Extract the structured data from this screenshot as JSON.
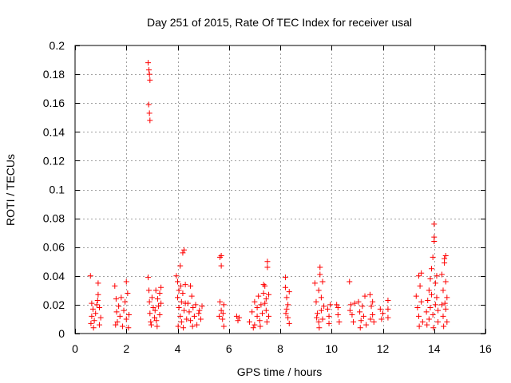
{
  "chart_data": {
    "type": "scatter",
    "title": "Day 251 of 2015, Rate Of TEC Index for receiver usal",
    "xlabel": "GPS time / hours",
    "ylabel": "ROTI / TECUs",
    "xlim": [
      0,
      16
    ],
    "ylim": [
      0,
      0.2
    ],
    "xticks": [
      0,
      2,
      4,
      6,
      8,
      10,
      12,
      14,
      16
    ],
    "xtick_labels": [
      "0",
      "2",
      "4",
      "6",
      "8",
      "10",
      "12",
      "14",
      "16"
    ],
    "yticks": [
      0,
      0.02,
      0.04,
      0.06,
      0.08,
      0.1,
      0.12,
      0.14,
      0.16,
      0.18,
      0.2
    ],
    "ytick_labels": [
      "0",
      "0.02",
      "0.04",
      "0.06",
      "0.08",
      "0.1",
      "0.12",
      "0.14",
      "0.16",
      "0.18",
      "0.2"
    ],
    "grid": true,
    "marker": "+",
    "series": [
      {
        "name": "ROTI",
        "color": "#ff0000",
        "points": [
          [
            0.6,
            0.04
          ],
          [
            0.65,
            0.021
          ],
          [
            0.65,
            0.012
          ],
          [
            0.62,
            0.007
          ],
          [
            0.7,
            0.017
          ],
          [
            0.75,
            0.009
          ],
          [
            0.8,
            0.014
          ],
          [
            0.85,
            0.02
          ],
          [
            0.9,
            0.035
          ],
          [
            0.9,
            0.027
          ],
          [
            0.95,
            0.018
          ],
          [
            0.95,
            0.006
          ],
          [
            1.0,
            0.011
          ],
          [
            0.72,
            0.004
          ],
          [
            0.88,
            0.023
          ],
          [
            1.55,
            0.033
          ],
          [
            1.6,
            0.024
          ],
          [
            1.62,
            0.015
          ],
          [
            1.65,
            0.008
          ],
          [
            1.7,
            0.019
          ],
          [
            1.75,
            0.012
          ],
          [
            1.8,
            0.025
          ],
          [
            1.85,
            0.005
          ],
          [
            1.9,
            0.016
          ],
          [
            1.95,
            0.022
          ],
          [
            2.0,
            0.036
          ],
          [
            2.0,
            0.01
          ],
          [
            2.05,
            0.028
          ],
          [
            2.1,
            0.013
          ],
          [
            1.58,
            0.006
          ],
          [
            2.08,
            0.004
          ],
          [
            2.85,
            0.188
          ],
          [
            2.88,
            0.183
          ],
          [
            2.9,
            0.18
          ],
          [
            2.92,
            0.176
          ],
          [
            2.87,
            0.159
          ],
          [
            2.9,
            0.153
          ],
          [
            2.92,
            0.148
          ],
          [
            2.85,
            0.039
          ],
          [
            2.88,
            0.03
          ],
          [
            2.9,
            0.022
          ],
          [
            2.92,
            0.014
          ],
          [
            2.95,
            0.008
          ],
          [
            3.0,
            0.025
          ],
          [
            3.05,
            0.018
          ],
          [
            3.1,
            0.011
          ],
          [
            3.15,
            0.03
          ],
          [
            3.2,
            0.005
          ],
          [
            3.25,
            0.019
          ],
          [
            3.3,
            0.028
          ],
          [
            3.3,
            0.013
          ],
          [
            3.35,
            0.032
          ],
          [
            3.35,
            0.021
          ],
          [
            3.12,
            0.016
          ],
          [
            3.22,
            0.024
          ],
          [
            2.97,
            0.006
          ],
          [
            3.17,
            0.009
          ],
          [
            3.95,
            0.04
          ],
          [
            4.0,
            0.036
          ],
          [
            4.0,
            0.025
          ],
          [
            4.05,
            0.03
          ],
          [
            4.05,
            0.018
          ],
          [
            4.1,
            0.012
          ],
          [
            4.1,
            0.047
          ],
          [
            4.15,
            0.022
          ],
          [
            4.15,
            0.008
          ],
          [
            4.2,
            0.028
          ],
          [
            4.2,
            0.056
          ],
          [
            4.25,
            0.058
          ],
          [
            4.25,
            0.016
          ],
          [
            4.3,
            0.034
          ],
          [
            4.3,
            0.021
          ],
          [
            4.35,
            0.01
          ],
          [
            4.02,
            0.005
          ],
          [
            4.12,
            0.033
          ],
          [
            4.22,
            0.004
          ],
          [
            4.4,
            0.021
          ],
          [
            4.45,
            0.015
          ],
          [
            4.5,
            0.009
          ],
          [
            4.5,
            0.033
          ],
          [
            4.55,
            0.026
          ],
          [
            4.6,
            0.018
          ],
          [
            4.65,
            0.012
          ],
          [
            4.7,
            0.02
          ],
          [
            4.75,
            0.006
          ],
          [
            4.85,
            0.016
          ],
          [
            4.9,
            0.01
          ],
          [
            4.95,
            0.019
          ],
          [
            4.58,
            0.005
          ],
          [
            4.82,
            0.014
          ],
          [
            5.65,
            0.053
          ],
          [
            5.7,
            0.054
          ],
          [
            5.7,
            0.047
          ],
          [
            5.65,
            0.022
          ],
          [
            5.7,
            0.016
          ],
          [
            5.75,
            0.01
          ],
          [
            5.8,
            0.02
          ],
          [
            5.8,
            0.005
          ],
          [
            5.62,
            0.012
          ],
          [
            5.77,
            0.014
          ],
          [
            6.3,
            0.012
          ],
          [
            6.35,
            0.009
          ],
          [
            6.4,
            0.011
          ],
          [
            6.8,
            0.008
          ],
          [
            6.9,
            0.015
          ],
          [
            7.0,
            0.022
          ],
          [
            7.0,
            0.006
          ],
          [
            7.1,
            0.018
          ],
          [
            7.1,
            0.012
          ],
          [
            7.15,
            0.026
          ],
          [
            7.2,
            0.009
          ],
          [
            7.25,
            0.02
          ],
          [
            7.3,
            0.014
          ],
          [
            7.35,
            0.028
          ],
          [
            7.35,
            0.034
          ],
          [
            7.4,
            0.033
          ],
          [
            7.4,
            0.021
          ],
          [
            7.45,
            0.024
          ],
          [
            7.45,
            0.016
          ],
          [
            7.5,
            0.046
          ],
          [
            7.5,
            0.05
          ],
          [
            7.55,
            0.027
          ],
          [
            7.55,
            0.012
          ],
          [
            6.95,
            0.004
          ],
          [
            7.22,
            0.005
          ],
          [
            7.48,
            0.008
          ],
          [
            8.2,
            0.039
          ],
          [
            8.2,
            0.032
          ],
          [
            8.25,
            0.025
          ],
          [
            8.25,
            0.017
          ],
          [
            8.3,
            0.011
          ],
          [
            8.3,
            0.02
          ],
          [
            8.35,
            0.029
          ],
          [
            8.35,
            0.007
          ],
          [
            8.22,
            0.014
          ],
          [
            9.35,
            0.035
          ],
          [
            9.4,
            0.022
          ],
          [
            9.45,
            0.014
          ],
          [
            9.5,
            0.008
          ],
          [
            9.5,
            0.03
          ],
          [
            9.55,
            0.041
          ],
          [
            9.55,
            0.046
          ],
          [
            9.6,
            0.025
          ],
          [
            9.6,
            0.016
          ],
          [
            9.65,
            0.036
          ],
          [
            9.65,
            0.01
          ],
          [
            9.7,
            0.019
          ],
          [
            9.52,
            0.004
          ],
          [
            9.42,
            0.011
          ],
          [
            9.85,
            0.017
          ],
          [
            9.9,
            0.012
          ],
          [
            9.95,
            0.02
          ],
          [
            9.9,
            0.007
          ],
          [
            10.2,
            0.02
          ],
          [
            10.25,
            0.013
          ],
          [
            10.3,
            0.008
          ],
          [
            10.25,
            0.018
          ],
          [
            10.7,
            0.036
          ],
          [
            10.75,
            0.02
          ],
          [
            10.8,
            0.013
          ],
          [
            10.85,
            0.008
          ],
          [
            10.9,
            0.021
          ],
          [
            10.72,
            0.016
          ],
          [
            11.05,
            0.022
          ],
          [
            11.1,
            0.015
          ],
          [
            11.15,
            0.009
          ],
          [
            11.2,
            0.019
          ],
          [
            11.25,
            0.012
          ],
          [
            11.3,
            0.026
          ],
          [
            11.35,
            0.006
          ],
          [
            11.12,
            0.004
          ],
          [
            11.5,
            0.027
          ],
          [
            11.55,
            0.019
          ],
          [
            11.6,
            0.013
          ],
          [
            11.65,
            0.008
          ],
          [
            11.6,
            0.022
          ],
          [
            11.52,
            0.01
          ],
          [
            11.9,
            0.017
          ],
          [
            11.95,
            0.01
          ],
          [
            12.0,
            0.014
          ],
          [
            12.2,
            0.023
          ],
          [
            12.2,
            0.017
          ],
          [
            12.2,
            0.011
          ],
          [
            13.3,
            0.026
          ],
          [
            13.35,
            0.018
          ],
          [
            13.4,
            0.012
          ],
          [
            13.4,
            0.04
          ],
          [
            13.45,
            0.033
          ],
          [
            13.5,
            0.042
          ],
          [
            13.5,
            0.022
          ],
          [
            13.55,
            0.008
          ],
          [
            13.42,
            0.005
          ],
          [
            13.7,
            0.015
          ],
          [
            13.75,
            0.023
          ],
          [
            13.8,
            0.03
          ],
          [
            13.8,
            0.01
          ],
          [
            13.85,
            0.038
          ],
          [
            13.85,
            0.018
          ],
          [
            13.9,
            0.045
          ],
          [
            13.9,
            0.027
          ],
          [
            13.95,
            0.053
          ],
          [
            13.95,
            0.013
          ],
          [
            14.0,
            0.064
          ],
          [
            14.0,
            0.067
          ],
          [
            14.0,
            0.076
          ],
          [
            14.05,
            0.035
          ],
          [
            14.05,
            0.02
          ],
          [
            14.1,
            0.04
          ],
          [
            14.1,
            0.025
          ],
          [
            14.15,
            0.008
          ],
          [
            14.15,
            0.016
          ],
          [
            13.72,
            0.006
          ],
          [
            13.97,
            0.004
          ],
          [
            14.3,
            0.02
          ],
          [
            14.3,
            0.041
          ],
          [
            14.35,
            0.03
          ],
          [
            14.35,
            0.012
          ],
          [
            14.4,
            0.049
          ],
          [
            14.4,
            0.052
          ],
          [
            14.45,
            0.054
          ],
          [
            14.45,
            0.036
          ],
          [
            14.45,
            0.017
          ],
          [
            14.5,
            0.025
          ],
          [
            14.5,
            0.008
          ],
          [
            14.37,
            0.005
          ],
          [
            14.42,
            0.021
          ]
        ]
      }
    ]
  }
}
